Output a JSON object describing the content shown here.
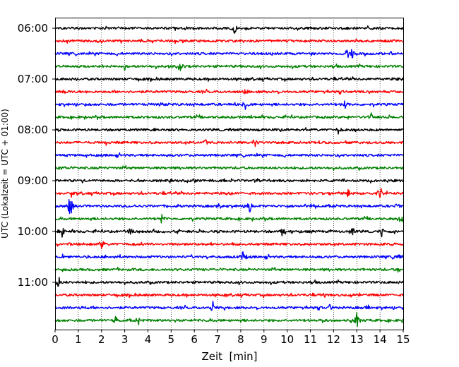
{
  "chart_data": {
    "type": "line",
    "title": "",
    "xlabel": "Zeit  [min]",
    "ylabel": "UTC (Lokalzeit = UTC + 01:00)",
    "xlim": [
      0,
      15
    ],
    "x_ticks": [
      0,
      1,
      2,
      3,
      4,
      5,
      6,
      7,
      8,
      9,
      10,
      11,
      12,
      13,
      14,
      15
    ],
    "y_ticks": [
      "06:00",
      "07:00",
      "08:00",
      "09:00",
      "10:00",
      "11:00"
    ],
    "grid": "vertical dotted",
    "trace_interval_minutes": 15,
    "trace_colors": [
      "#000000",
      "#ff0000",
      "#0000ff",
      "#008000"
    ],
    "traces": [
      {
        "start": "06:00",
        "color": "#000000",
        "events": [
          {
            "x": 7.75,
            "amp": 1.0
          }
        ]
      },
      {
        "start": "06:15",
        "color": "#ff0000",
        "events": [
          {
            "x": 8.15,
            "amp": 0.5
          }
        ]
      },
      {
        "start": "06:30",
        "color": "#0000ff",
        "events": [
          {
            "x": 12.6,
            "amp": 0.9
          },
          {
            "x": 12.8,
            "amp": 1.1
          }
        ]
      },
      {
        "start": "06:45",
        "color": "#008000",
        "events": [
          {
            "x": 3.0,
            "amp": 0.5
          },
          {
            "x": 4.9,
            "amp": 0.4
          },
          {
            "x": 5.4,
            "amp": 1.1
          }
        ]
      },
      {
        "start": "07:00",
        "color": "#000000",
        "events": [
          {
            "x": 14.8,
            "amp": 0.5
          }
        ]
      },
      {
        "start": "07:15",
        "color": "#ff0000",
        "events": [
          {
            "x": 0.4,
            "amp": 0.4
          },
          {
            "x": 8.2,
            "amp": 0.4
          }
        ]
      },
      {
        "start": "07:30",
        "color": "#0000ff",
        "events": [
          {
            "x": 4.5,
            "amp": 0.5
          },
          {
            "x": 8.2,
            "amp": 1.1
          },
          {
            "x": 12.5,
            "amp": 0.9
          }
        ]
      },
      {
        "start": "07:45",
        "color": "#008000",
        "events": [
          {
            "x": 13.6,
            "amp": 0.8
          }
        ]
      },
      {
        "start": "08:00",
        "color": "#000000",
        "events": [
          {
            "x": 12.2,
            "amp": 0.8
          }
        ]
      },
      {
        "start": "08:15",
        "color": "#ff0000",
        "events": [
          {
            "x": 2.2,
            "amp": 0.4
          },
          {
            "x": 6.5,
            "amp": 0.7
          },
          {
            "x": 8.6,
            "amp": 1.0
          }
        ]
      },
      {
        "start": "08:30",
        "color": "#0000ff",
        "events": []
      },
      {
        "start": "08:45",
        "color": "#008000",
        "events": [
          {
            "x": 0.3,
            "amp": 0.4
          }
        ]
      },
      {
        "start": "09:00",
        "color": "#000000",
        "events": [
          {
            "x": 1.2,
            "amp": 0.3
          }
        ]
      },
      {
        "start": "09:15",
        "color": "#ff0000",
        "events": [
          {
            "x": 0.7,
            "amp": 0.5
          },
          {
            "x": 7.5,
            "amp": 0.5
          },
          {
            "x": 12.6,
            "amp": 1.0
          },
          {
            "x": 14.0,
            "amp": 0.9
          }
        ]
      },
      {
        "start": "09:30",
        "color": "#0000ff",
        "events": [
          {
            "x": 0.65,
            "amp": 2.0
          },
          {
            "x": 7.1,
            "amp": 0.5
          },
          {
            "x": 8.4,
            "amp": 1.2
          },
          {
            "x": 14.7,
            "amp": 0.6
          }
        ]
      },
      {
        "start": "09:45",
        "color": "#008000",
        "events": [
          {
            "x": 4.6,
            "amp": 1.1
          },
          {
            "x": 14.9,
            "amp": 1.1
          }
        ]
      },
      {
        "start": "10:00",
        "color": "#000000",
        "events": [
          {
            "x": 0.3,
            "amp": 1.1
          },
          {
            "x": 3.2,
            "amp": 0.9
          },
          {
            "x": 9.8,
            "amp": 0.9
          },
          {
            "x": 12.8,
            "amp": 1.0
          },
          {
            "x": 14.1,
            "amp": 1.0
          }
        ]
      },
      {
        "start": "10:15",
        "color": "#ff0000",
        "events": [
          {
            "x": 2.0,
            "amp": 1.0
          }
        ]
      },
      {
        "start": "10:30",
        "color": "#0000ff",
        "events": [
          {
            "x": 0.3,
            "amp": 0.6
          },
          {
            "x": 8.1,
            "amp": 0.9
          },
          {
            "x": 14.8,
            "amp": 0.6
          }
        ]
      },
      {
        "start": "10:45",
        "color": "#008000",
        "events": [
          {
            "x": 14.8,
            "amp": 0.5
          }
        ]
      },
      {
        "start": "11:00",
        "color": "#000000",
        "events": [
          {
            "x": 0.15,
            "amp": 1.1
          }
        ]
      },
      {
        "start": "11:15",
        "color": "#ff0000",
        "events": [
          {
            "x": 11.6,
            "amp": 0.5
          }
        ]
      },
      {
        "start": "11:30",
        "color": "#0000ff",
        "events": [
          {
            "x": 1.2,
            "amp": 0.5
          },
          {
            "x": 6.8,
            "amp": 1.2
          },
          {
            "x": 11.8,
            "amp": 1.1
          },
          {
            "x": 13.5,
            "amp": 0.5
          }
        ]
      },
      {
        "start": "11:45",
        "color": "#008000",
        "events": [
          {
            "x": 2.6,
            "amp": 0.8
          },
          {
            "x": 3.6,
            "amp": 0.8
          },
          {
            "x": 13.0,
            "amp": 1.1
          }
        ]
      }
    ]
  }
}
